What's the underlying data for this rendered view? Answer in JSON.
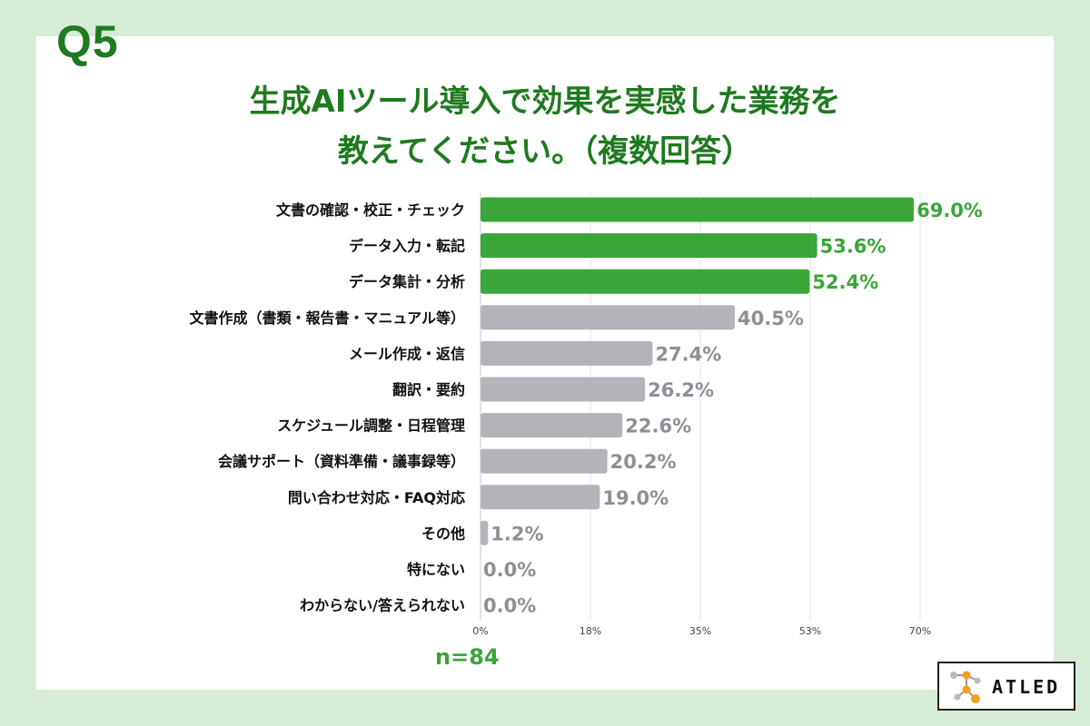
{
  "header": {
    "question": "Q5",
    "title_line1": "生成AIツール導入で効果を実感した業務を",
    "title_line2": "教えてください。（複数回答）"
  },
  "footer": {
    "sample": "n=84",
    "logo_text": "ATLED"
  },
  "colors": {
    "highlight": "#3aa63a",
    "other_bar": "#b5b3ba",
    "other_label": "#8f8e96",
    "title": "#1f7a1f"
  },
  "chart_data": {
    "type": "bar",
    "orientation": "horizontal",
    "categories": [
      "文書の確認・校正・チェック",
      "データ入力・転記",
      "データ集計・分析",
      "文書作成（書類・報告書・マニュアル等）",
      "メール作成・返信",
      "翻訳・要約",
      "スケジュール調整・日程管理",
      "会議サポート（資料準備・議事録等）",
      "問い合わせ対応・FAQ対応",
      "その他",
      "特にない",
      "わからない/答えられない"
    ],
    "values": [
      69.0,
      53.6,
      52.4,
      40.5,
      27.4,
      26.2,
      22.6,
      20.2,
      19.0,
      1.2,
      0.0,
      0.0
    ],
    "value_labels": [
      "69.0%",
      "53.6%",
      "52.4%",
      "40.5%",
      "27.4%",
      "26.2%",
      "22.6%",
      "20.2%",
      "19.0%",
      "1.2%",
      "0.0%",
      "0.0%"
    ],
    "highlighted_count": 3,
    "xlim": [
      0,
      70
    ],
    "xticks": [
      0,
      17.5,
      35,
      52.5,
      70
    ],
    "xtick_labels": [
      "0%",
      "18%",
      "35%",
      "53%",
      "70%"
    ],
    "grid": true
  }
}
